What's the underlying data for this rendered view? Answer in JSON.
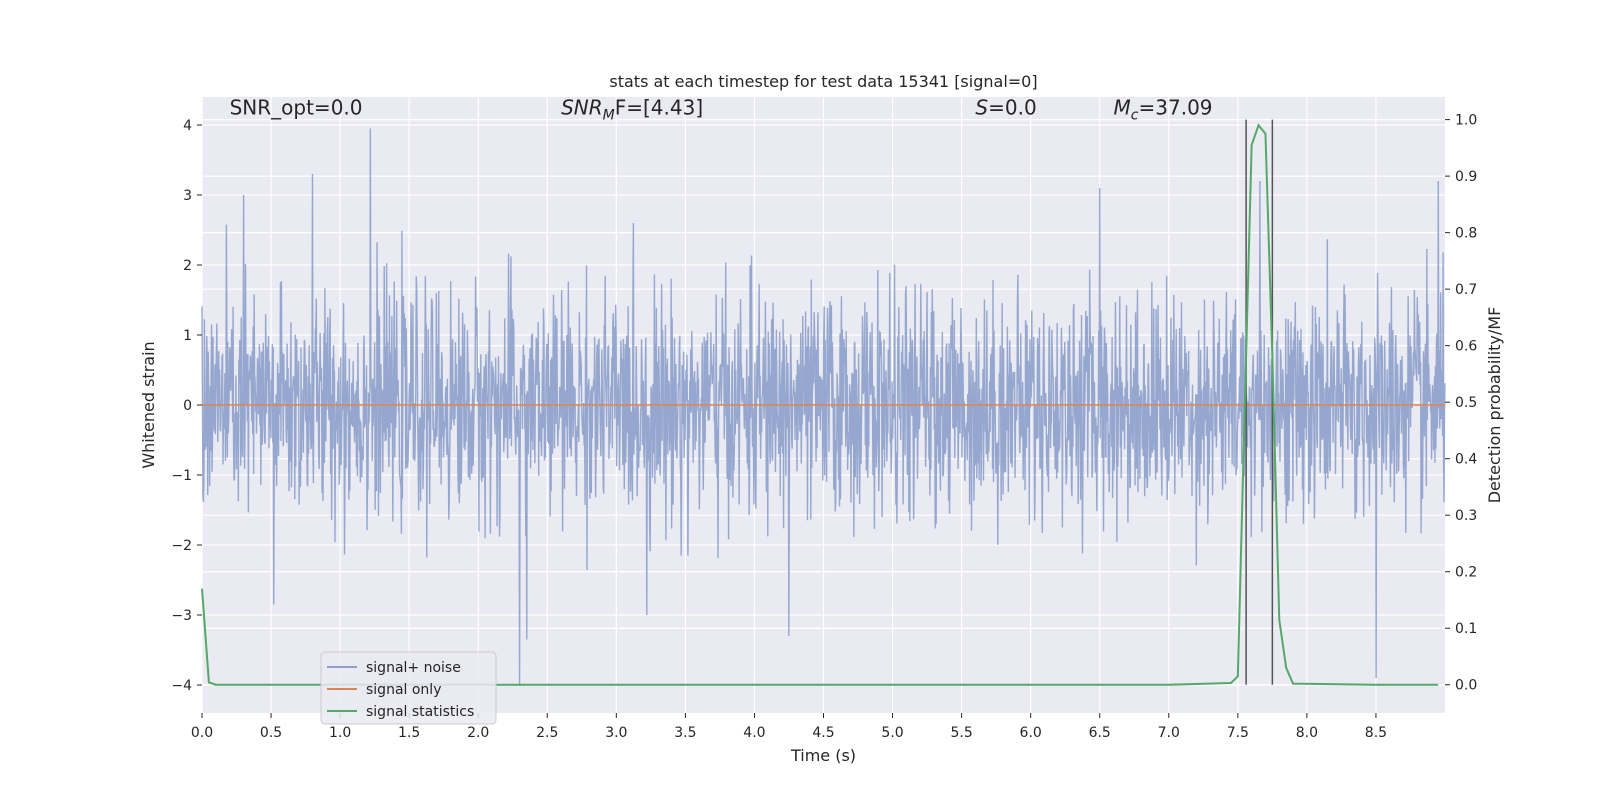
{
  "chart_data": {
    "type": "line",
    "title": "stats at each timestep for test data 15341 [signal=0]",
    "xlabel": "Time (s)",
    "ylabel_left": "Whitened strain",
    "ylabel_right": "Detection probability/MF",
    "xlim": [
      0.0,
      9.0
    ],
    "ylim_left": [
      -4.4,
      4.4
    ],
    "ylim_right": [
      -0.05,
      1.04
    ],
    "x_ticks": [
      0.0,
      0.5,
      1.0,
      1.5,
      2.0,
      2.5,
      3.0,
      3.5,
      4.0,
      4.5,
      5.0,
      5.5,
      6.0,
      6.5,
      7.0,
      7.5,
      8.0,
      8.5
    ],
    "x_tick_labels": [
      "0.0",
      "0.5",
      "1.0",
      "1.5",
      "2.0",
      "2.5",
      "3.0",
      "3.5",
      "4.0",
      "4.5",
      "5.0",
      "5.5",
      "6.0",
      "6.5",
      "7.0",
      "7.5",
      "8.0",
      "8.5"
    ],
    "y_left_ticks": [
      -4,
      -3,
      -2,
      -1,
      0,
      1,
      2,
      3,
      4
    ],
    "y_left_tick_labels": [
      "−4",
      "−3",
      "−2",
      "−1",
      "0",
      "1",
      "2",
      "3",
      "4"
    ],
    "y_right_ticks": [
      0.0,
      0.1,
      0.2,
      0.3,
      0.4,
      0.5,
      0.6,
      0.7,
      0.8,
      0.9,
      1.0
    ],
    "y_right_tick_labels": [
      "0.0",
      "0.1",
      "0.2",
      "0.3",
      "0.4",
      "0.5",
      "0.6",
      "0.7",
      "0.8",
      "0.9",
      "1.0"
    ],
    "grid": true,
    "annotations": [
      {
        "name": "snr-opt",
        "text": "SNR_opt=0.0",
        "x": 0.2,
        "y": 4.15
      },
      {
        "name": "snr-mf",
        "text_parts": [
          "SNR",
          "M",
          "F=[4.43]"
        ],
        "x": 2.6,
        "y": 4.15
      },
      {
        "name": "s-stat",
        "text_parts": [
          "S",
          "=0.0"
        ],
        "x": 5.6,
        "y": 4.15
      },
      {
        "name": "chirp-mass",
        "text_parts": [
          "M",
          "c",
          "=37.09"
        ],
        "x": 6.6,
        "y": 4.15
      }
    ],
    "legend": {
      "position": "lower-left",
      "entries": [
        "signal+ noise",
        "signal only",
        "signal statistics"
      ]
    },
    "series": [
      {
        "name": "signal+ noise",
        "axis": "left",
        "color": "#8da0cb",
        "kind": "noise",
        "x_range": [
          0.0,
          9.0
        ],
        "typical_amplitude": 1.6,
        "notable_peaks": [
          {
            "x": 1.22,
            "y": 3.95
          },
          {
            "x": 0.8,
            "y": 3.3
          },
          {
            "x": 0.3,
            "y": 3.0
          },
          {
            "x": 7.66,
            "y": 3.2
          },
          {
            "x": 8.95,
            "y": 3.2
          },
          {
            "x": 6.5,
            "y": 3.1
          },
          {
            "x": 2.3,
            "y": -4.0
          },
          {
            "x": 2.35,
            "y": -3.35
          },
          {
            "x": 4.25,
            "y": -3.3
          },
          {
            "x": 8.5,
            "y": -3.9
          },
          {
            "x": 3.22,
            "y": -3.0
          },
          {
            "x": 0.52,
            "y": -2.85
          }
        ]
      },
      {
        "name": "signal only",
        "axis": "left",
        "color": "#dd8452",
        "x": [
          0.0,
          9.0
        ],
        "y": [
          0.0,
          0.0
        ]
      },
      {
        "name": "signal statistics",
        "axis": "right",
        "color": "#55a868",
        "x": [
          0.0,
          0.05,
          0.1,
          1.0,
          2.0,
          3.0,
          4.0,
          5.0,
          6.0,
          7.0,
          7.45,
          7.5,
          7.55,
          7.6,
          7.65,
          7.7,
          7.75,
          7.8,
          7.85,
          7.9,
          8.5,
          8.95
        ],
        "y": [
          0.17,
          0.004,
          0.0,
          0.0,
          0.0,
          0.0,
          0.0,
          0.0,
          0.0,
          0.0,
          0.003,
          0.015,
          0.49,
          0.955,
          0.99,
          0.975,
          0.58,
          0.115,
          0.03,
          0.002,
          0.0,
          0.0
        ]
      }
    ],
    "vertical_lines": [
      {
        "x": 7.56,
        "ymin": 0.0,
        "ymax": 1.0,
        "color": "#555555"
      },
      {
        "x": 7.75,
        "ymin": 0.0,
        "ymax": 1.0,
        "color": "#555555"
      }
    ],
    "colors": {
      "background": "#eaeaf2",
      "grid": "#ffffff",
      "text": "#262626"
    }
  }
}
